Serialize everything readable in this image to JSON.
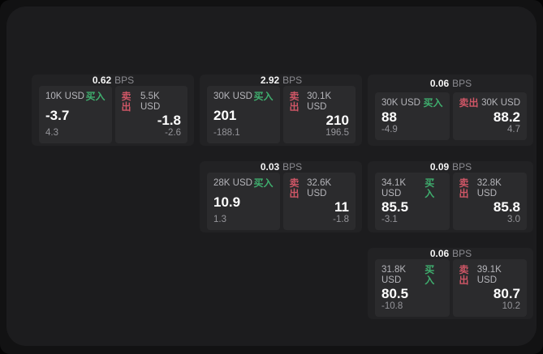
{
  "labels": {
    "bps": "BPS",
    "buy": "买入",
    "sell": "卖出"
  },
  "colors": {
    "background": "#121213",
    "panel": "#1c1c1e",
    "card": "#222224",
    "tile": "#2b2b2d",
    "buy_accent": "#3fae6e",
    "sell_accent": "#cf5666"
  },
  "cards": [
    {
      "spread_bps": "0.62",
      "buy": {
        "size": "10K USD",
        "price": "-3.7",
        "sub": "4.3"
      },
      "sell": {
        "size": "5.5K USD",
        "price": "-1.8",
        "sub": "-2.6"
      }
    },
    {
      "spread_bps": "2.92",
      "buy": {
        "size": "30K USD",
        "price": "201",
        "sub": "-188.1"
      },
      "sell": {
        "size": "30.1K USD",
        "price": "210",
        "sub": "196.5"
      }
    },
    {
      "spread_bps": "0.06",
      "buy": {
        "size": "30K USD",
        "price": "88",
        "sub": "-4.9"
      },
      "sell": {
        "size": "30K USD",
        "price": "88.2",
        "sub": "4.7"
      }
    },
    {
      "spread_bps": "0.03",
      "buy": {
        "size": "28K USD",
        "price": "10.9",
        "sub": "1.3"
      },
      "sell": {
        "size": "32.6K USD",
        "price": "11",
        "sub": "-1.8"
      }
    },
    {
      "spread_bps": "0.09",
      "buy": {
        "size": "34.1K USD",
        "price": "85.5",
        "sub": "-3.1"
      },
      "sell": {
        "size": "32.8K USD",
        "price": "85.8",
        "sub": "3.0"
      }
    },
    {
      "spread_bps": "0.06",
      "buy": {
        "size": "31.8K USD",
        "price": "80.5",
        "sub": "-10.8"
      },
      "sell": {
        "size": "39.1K USD",
        "price": "80.7",
        "sub": "10.2"
      }
    }
  ]
}
